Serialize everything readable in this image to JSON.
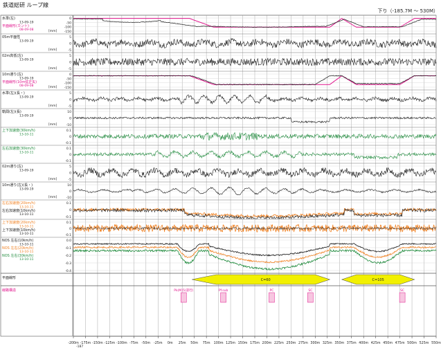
{
  "header": {
    "title": "鉄道総研 ループ線",
    "direction": "下り（-185.7M ～ 530M）"
  },
  "colors": {
    "black": "#1a1a1a",
    "magenta": "#e0148c",
    "green": "#1f8a3c",
    "orange": "#f08020",
    "yellow": "#f2f000",
    "grid": "#a8a8a8",
    "channel_bg": "#f4f4f4"
  },
  "chart_data": {
    "type": "line",
    "x": {
      "unit": "m",
      "range": [
        -200,
        550
      ],
      "ticks": [
        -200,
        -175,
        -150,
        -125,
        -100,
        -75,
        -50,
        -25,
        0,
        25,
        50,
        75,
        100,
        125,
        150,
        175,
        200,
        225,
        250,
        275,
        300,
        325,
        350,
        375,
        400,
        425,
        450,
        475,
        500,
        525,
        550
      ],
      "tick_suffix": "m",
      "extra_label": "-187"
    },
    "channels": [
      {
        "label": "水準(左)",
        "date": "13-09-19",
        "label2": "平面線形(カント)",
        "date2": "08-09-08",
        "unit": "[mm]",
        "ticks": [
          "0",
          "-50",
          "-100",
          "-150"
        ],
        "ylim": [
          -150,
          0
        ],
        "color": "black",
        "color2": "magenta",
        "signal": "cant"
      },
      {
        "label": "05m平面性",
        "date": "13-09-19",
        "unit": "[mm]",
        "ticks": [
          "5",
          "0",
          "-5"
        ],
        "ylim": [
          -5,
          5
        ],
        "color": "black",
        "signal": "noise1"
      },
      {
        "label": "02m高低(左)",
        "date": "13-09-19",
        "unit": "[mm]",
        "ticks": [
          "5",
          "0",
          "-5"
        ],
        "ylim": [
          -5,
          5
        ],
        "color": "black",
        "signal": "noise2"
      },
      {
        "label": "10m通り(左)",
        "date": "13-09-19",
        "label2": "平面線形(10m弦正矢)",
        "date2": "08-09-08",
        "unit": "[mm]",
        "ticks": [
          "0",
          "-50",
          "-100",
          "-150"
        ],
        "ylim": [
          -150,
          0
        ],
        "color": "black",
        "color2": "magenta",
        "signal": "versine"
      },
      {
        "label": "水準(左)(長・)",
        "date": "13-09-19",
        "unit": "[mm]",
        "ticks": [
          "5",
          "0",
          "-5"
        ],
        "ylim": [
          -5,
          5
        ],
        "color": "black",
        "signal": "noise3"
      },
      {
        "label": "軌間(左)(長)",
        "date": "13-09-19",
        "unit": "[mm]",
        "ticks": [
          "10",
          "0",
          "-10"
        ],
        "ylim": [
          -10,
          10
        ],
        "color": "black",
        "signal": "gauge"
      },
      {
        "label": "上下加速度(30km/h)",
        "date": "13-10-11",
        "ticks": [
          "0.1",
          "0",
          "-0.1"
        ],
        "ylim": [
          -0.1,
          0.1
        ],
        "color": "green",
        "signal": "acc1"
      },
      {
        "label": "左右加速度(30km/h)",
        "date": "13-10-11",
        "ticks": [
          "0.1",
          "0",
          "-0.1"
        ],
        "ylim": [
          -0.1,
          0.1
        ],
        "color": "green",
        "signal": "acc2"
      },
      {
        "label": "02m通り(左)",
        "date": "13-09-19",
        "unit": "[mm]",
        "ticks": [
          "5",
          "0",
          "-5"
        ],
        "ylim": [
          -5,
          5
        ],
        "color": "black",
        "signal": "noise4"
      },
      {
        "label": "10m通り(左)(長・)",
        "date": "13-09-19",
        "unit": "[mm]",
        "ticks": [
          "10",
          "0",
          "-10"
        ],
        "ylim": [
          -10,
          10
        ],
        "color": "black",
        "signal": "wave10"
      },
      {
        "label": "左右加速度(20km/h)",
        "date": "13-10-11",
        "label2": "左右加速度(10km/h)",
        "date2": "13-10-11",
        "ticks": [
          "0.1",
          "0",
          "-0.1"
        ],
        "ylim": [
          -0.1,
          0.1
        ],
        "color": "orange",
        "color2": "black",
        "signal": "lat2"
      },
      {
        "label": "上下加速度(20km/h)",
        "date": "13-10-11",
        "label2": "上下加速度(10km/h)",
        "date2": "13-10-11",
        "ticks": [
          "0.1",
          "0",
          "-0.1"
        ],
        "ylim": [
          -0.1,
          0.1
        ],
        "color": "orange",
        "color2": "black",
        "signal": "vert2"
      },
      {
        "label": "NOS 左右(10km/h)",
        "date": "13-10-11",
        "label2": "NOS 左右(20km/h)",
        "date2": "13-10-11",
        "label3": "NOS 左右(30km/h)",
        "date3": "13-10-11",
        "ticks": [
          "0.0",
          "-0.1",
          "-0.2",
          "-0.3",
          "-0.4"
        ],
        "ylim": [
          -0.4,
          0.0
        ],
        "color": "black",
        "color2": "orange",
        "color3": "green",
        "signal": "nos"
      }
    ],
    "alignment": {
      "label": "平面線形",
      "curves": [
        {
          "label": "C=60",
          "x_start": 45,
          "x_end": 330,
          "plateau_start": 95,
          "plateau_end": 300
        },
        {
          "label": "C=105",
          "x_start": 355,
          "x_end": 505,
          "plateau_start": 385,
          "plateau_end": 475
        }
      ]
    },
    "structures": {
      "label": "線路構造",
      "items": [
        {
          "label": "Pk(M)5(逆行)",
          "x": 28
        },
        {
          "label": "Pf.sub",
          "x": 110
        },
        {
          "label": "PC",
          "x": 210
        },
        {
          "label": "SC",
          "x": 290
        },
        {
          "label": "SC",
          "x": 480
        }
      ]
    }
  }
}
